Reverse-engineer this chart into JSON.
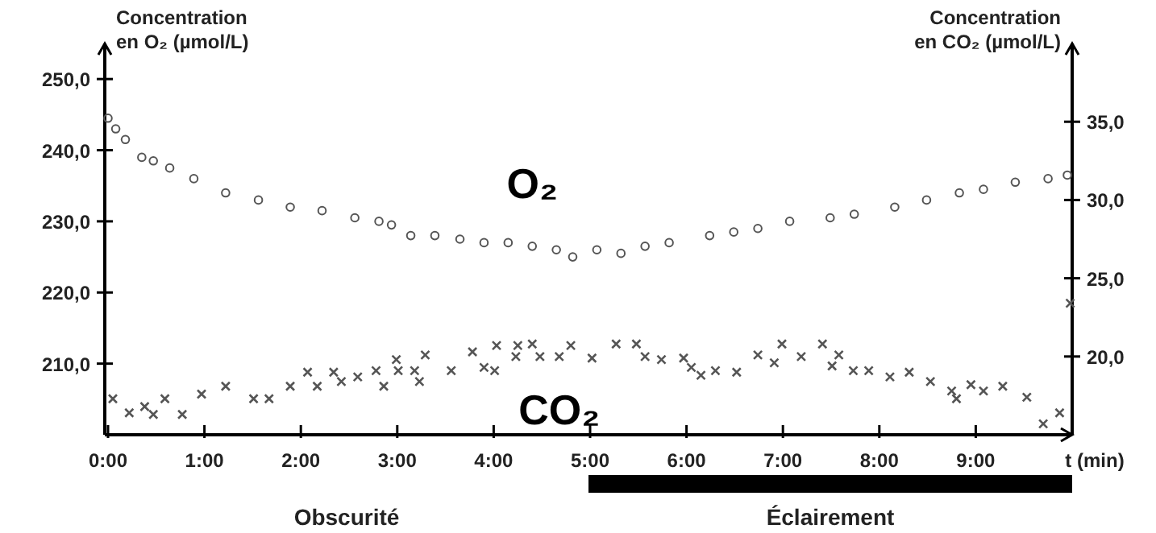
{
  "chart_data": {
    "type": "scatter",
    "xlabel": "t (min)",
    "ylabel": "Concentration en O₂ (µmol/L)",
    "y2label": "Concentration en CO₂ (µmol/L)",
    "xlim": [
      0,
      10
    ],
    "xticks": [
      {
        "value": 0,
        "label": "0:00"
      },
      {
        "value": 1,
        "label": "1:00"
      },
      {
        "value": 2,
        "label": "2:00"
      },
      {
        "value": 3,
        "label": "3:00"
      },
      {
        "value": 4,
        "label": "4:00"
      },
      {
        "value": 5,
        "label": "5:00"
      },
      {
        "value": 6,
        "label": "6:00"
      },
      {
        "value": 7,
        "label": "7:00"
      },
      {
        "value": 8,
        "label": "8:00"
      },
      {
        "value": 9,
        "label": "9:00"
      }
    ],
    "ylim": [
      200,
      255
    ],
    "yticks": [
      {
        "value": 210,
        "label": "210,0"
      },
      {
        "value": 220,
        "label": "220,0"
      },
      {
        "value": 230,
        "label": "230,0"
      },
      {
        "value": 240,
        "label": "240,0"
      },
      {
        "value": 250,
        "label": "250,0"
      }
    ],
    "y2lim": [
      15,
      40
    ],
    "y2ticks": [
      {
        "value": 20,
        "label": "20,0"
      },
      {
        "value": 25,
        "label": "25,0"
      },
      {
        "value": 30,
        "label": "30,0"
      },
      {
        "value": 35,
        "label": "35,0"
      }
    ],
    "grid": false,
    "series": [
      {
        "name": "O₂",
        "color": "#555555",
        "marker": "circle",
        "x": [
          0,
          0.08,
          0.18,
          0.35,
          0.47,
          0.64,
          0.89,
          1.22,
          1.56,
          1.89,
          2.22,
          2.56,
          2.81,
          2.94,
          3.14,
          3.39,
          3.65,
          3.9,
          4.15,
          4.4,
          4.65,
          4.82,
          5.07,
          5.32,
          5.57,
          5.82,
          6.24,
          6.49,
          6.74,
          7.07,
          7.49,
          7.74,
          8.16,
          8.49,
          8.83,
          9.08,
          9.41,
          9.75,
          9.95
        ],
        "values": [
          244.5,
          243,
          241.5,
          239,
          238.5,
          237.5,
          236,
          234,
          233,
          232,
          231.5,
          230.5,
          230,
          229.5,
          228,
          228,
          227.5,
          227,
          227,
          226.5,
          226,
          225,
          226,
          225.5,
          226.5,
          227,
          228,
          228.5,
          229,
          230,
          230.5,
          231,
          232,
          233,
          234,
          234.5,
          235.5,
          236,
          236.5
        ]
      },
      {
        "name": "CO₂",
        "color": "#555555",
        "marker": "cross",
        "axis": "y2",
        "x": [
          0.05,
          0.22,
          0.38,
          0.47,
          0.59,
          0.77,
          0.97,
          1.22,
          1.51,
          1.67,
          1.89,
          2.07,
          2.17,
          2.34,
          2.42,
          2.59,
          2.78,
          2.86,
          2.99,
          3.01,
          3.18,
          3.23,
          3.29,
          3.56,
          3.78,
          3.9,
          4.01,
          4.03,
          4.23,
          4.25,
          4.4,
          4.48,
          4.68,
          4.8,
          5.02,
          5.27,
          5.48,
          5.57,
          5.74,
          5.97,
          6.05,
          6.15,
          6.3,
          6.52,
          6.74,
          6.91,
          6.99,
          7.19,
          7.41,
          7.51,
          7.58,
          7.73,
          7.89,
          8.11,
          8.31,
          8.53,
          8.75,
          8.8,
          8.95,
          9.08,
          9.28,
          9.53,
          9.7,
          9.87,
          9.98
        ],
        "values": [
          17.3,
          16.4,
          16.8,
          16.3,
          17.3,
          16.3,
          17.6,
          18.1,
          17.3,
          17.3,
          18.1,
          19,
          18.1,
          19,
          18.4,
          18.7,
          19.1,
          18.1,
          19.8,
          19.1,
          19.1,
          18.4,
          20.1,
          19.1,
          20.3,
          19.3,
          19.1,
          20.7,
          20,
          20.7,
          20.8,
          20,
          20,
          20.7,
          19.9,
          20.8,
          20.8,
          20,
          19.8,
          19.9,
          19.3,
          18.8,
          19.1,
          19,
          20.1,
          19.6,
          20.8,
          20,
          20.8,
          19.4,
          20.1,
          19.1,
          19.1,
          18.7,
          19,
          18.4,
          17.8,
          17.3,
          18.2,
          17.8,
          18.1,
          17.4,
          15.7,
          16.4,
          23.4
        ]
      }
    ],
    "annotations": [
      "Obscurité",
      "Éclairement"
    ]
  }
}
